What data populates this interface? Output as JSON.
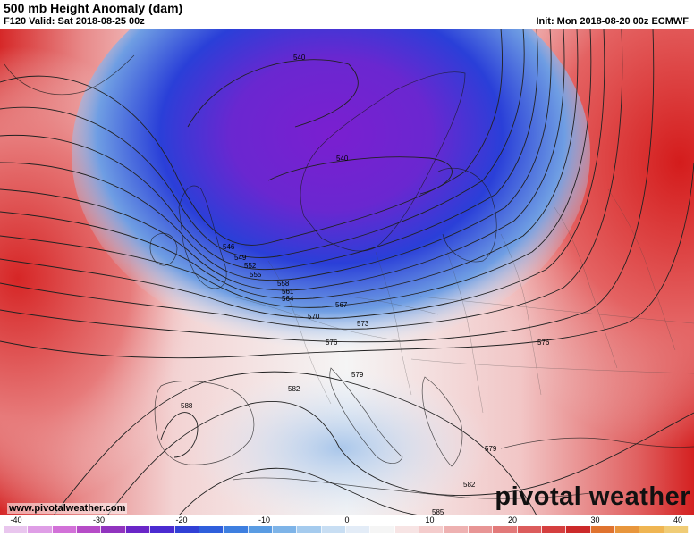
{
  "header": {
    "title": "500 mb Height Anomaly (dam)",
    "valid": "F120 Valid: Sat 2018-08-25 00z",
    "init": "Init: Mon 2018-08-20 00z ECMWF"
  },
  "map": {
    "region": "Europe",
    "contour_labels": [
      "540",
      "540",
      "546",
      "549",
      "552",
      "555",
      "558",
      "561",
      "564",
      "567",
      "570",
      "573",
      "576",
      "576",
      "579",
      "579",
      "582",
      "582",
      "585",
      "588"
    ],
    "anomaly_colors": {
      "strong_negative": "#7a1fd0",
      "negative": "#2a3fd8",
      "weak_negative": "#b8d0ec",
      "neutral": "#f2f2f2",
      "weak_positive": "#f0b8b8",
      "positive": "#e25555",
      "strong_positive": "#d42020"
    }
  },
  "footer": {
    "website": "www.pivotalweather.com",
    "brand": "pivotal weather"
  },
  "colorbar": {
    "tick_labels": [
      "-40",
      "-30",
      "-20",
      "-10",
      "0",
      "10",
      "20",
      "30",
      "40"
    ],
    "colors": [
      "#e9c6ee",
      "#df9ee6",
      "#d271d8",
      "#b64cc7",
      "#9134bf",
      "#6a26c8",
      "#4b2bd1",
      "#3140d6",
      "#2f5fdc",
      "#3e7fe0",
      "#5a9ce3",
      "#7eb4e8",
      "#a5cbee",
      "#c8def3",
      "#e3ecf7",
      "#f5f5f5",
      "#f7e4e4",
      "#f4cccc",
      "#eeb1b1",
      "#e89595",
      "#e27979",
      "#dc5c5c",
      "#d53f3f",
      "#cc2a2a",
      "#e0732f",
      "#e8963c",
      "#efb552",
      "#f0cc76"
    ]
  }
}
